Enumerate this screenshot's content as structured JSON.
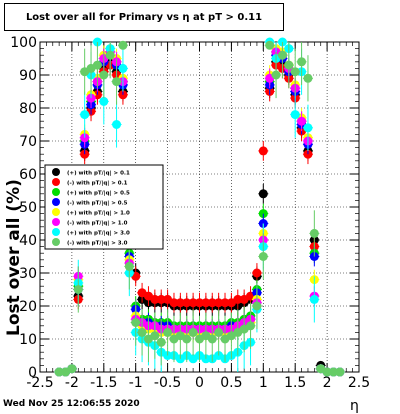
{
  "title": "Lost over all for Primary vs  η at pT > 0.11",
  "timestamp": "Wed Nov 25 12:06:55 2020",
  "chart_data": {
    "type": "scatter",
    "title": "Lost over all for Primary vs  η at pT > 0.11",
    "xlabel": "η",
    "ylabel": "Lost over all (%)",
    "xlim": [
      -2.5,
      2.5
    ],
    "ylim": [
      0,
      100
    ],
    "xticks": [
      "-2.5",
      "-2",
      "-1.5",
      "-1",
      "-0.5",
      "0",
      "0.5",
      "1",
      "1.5",
      "2",
      "2.5"
    ],
    "yticks": [
      "0",
      "10",
      "20",
      "30",
      "40",
      "50",
      "60",
      "70",
      "80",
      "90",
      "100"
    ],
    "grid": true,
    "legend_position": "left-middle",
    "series": [
      {
        "name": "(+) with pT/|q| > 0.1",
        "color": "#000000",
        "x": [
          -2.2,
          -2.1,
          -2.0,
          -1.9,
          -1.8,
          -1.7,
          -1.6,
          -1.5,
          -1.4,
          -1.3,
          -1.2,
          -1.1,
          -1.0,
          -0.9,
          -0.8,
          -0.7,
          -0.6,
          -0.5,
          -0.4,
          -0.3,
          -0.2,
          -0.1,
          0.0,
          0.1,
          0.2,
          0.3,
          0.4,
          0.5,
          0.6,
          0.7,
          0.8,
          0.9,
          1.0,
          1.1,
          1.2,
          1.3,
          1.4,
          1.5,
          1.6,
          1.7,
          1.8,
          1.9,
          2.0,
          2.1,
          2.2
        ],
        "y": [
          0,
          0,
          1,
          23,
          67,
          80,
          85,
          92,
          94,
          91,
          85,
          40,
          30,
          22,
          21,
          21,
          21,
          21,
          20,
          20,
          20,
          20,
          20,
          20,
          20,
          20,
          20,
          20,
          20,
          21,
          22,
          29,
          54,
          86,
          94,
          93,
          90,
          84,
          74,
          67,
          40,
          2,
          0,
          0,
          0
        ]
      },
      {
        "name": "(-) with pT/|q| > 0.1",
        "color": "#ff0000",
        "x": [
          -2.2,
          -2.1,
          -2.0,
          -1.9,
          -1.8,
          -1.7,
          -1.6,
          -1.5,
          -1.4,
          -1.3,
          -1.2,
          -1.1,
          -1.0,
          -0.9,
          -0.8,
          -0.7,
          -0.6,
          -0.5,
          -0.4,
          -0.3,
          -0.2,
          -0.1,
          0.0,
          0.1,
          0.2,
          0.3,
          0.4,
          0.5,
          0.6,
          0.7,
          0.8,
          0.9,
          1.0,
          1.1,
          1.2,
          1.3,
          1.4,
          1.5,
          1.6,
          1.7,
          1.8,
          1.9,
          2.0,
          2.1,
          2.2
        ],
        "y": [
          0,
          0,
          1,
          22,
          66,
          79,
          84,
          91,
          93,
          90,
          84,
          39,
          29,
          24,
          23,
          22,
          22,
          22,
          21,
          21,
          21,
          21,
          21,
          21,
          21,
          21,
          21,
          21,
          22,
          22,
          23,
          30,
          67,
          85,
          93,
          92,
          89,
          83,
          73,
          66,
          38,
          1,
          0,
          0,
          0
        ]
      },
      {
        "name": "(+) with pT/|q| > 0.5",
        "color": "#00dd00",
        "x": [
          -2.2,
          -2.1,
          -2.0,
          -1.9,
          -1.8,
          -1.7,
          -1.6,
          -1.5,
          -1.4,
          -1.3,
          -1.2,
          -1.1,
          -1.0,
          -0.9,
          -0.8,
          -0.7,
          -0.6,
          -0.5,
          -0.4,
          -0.3,
          -0.2,
          -0.1,
          0.0,
          0.1,
          0.2,
          0.3,
          0.4,
          0.5,
          0.6,
          0.7,
          0.8,
          0.9,
          1.0,
          1.1,
          1.2,
          1.3,
          1.4,
          1.5,
          1.6,
          1.7,
          1.8,
          1.9,
          2.0,
          2.1,
          2.2
        ],
        "y": [
          0,
          0,
          1,
          26,
          70,
          82,
          88,
          95,
          97,
          94,
          88,
          36,
          20,
          16,
          16,
          15,
          15,
          15,
          14,
          14,
          14,
          14,
          14,
          14,
          14,
          14,
          14,
          15,
          15,
          16,
          17,
          25,
          48,
          88,
          97,
          96,
          92,
          86,
          76,
          70,
          36,
          1,
          0,
          0,
          0
        ]
      },
      {
        "name": "(-) with pT/|q| > 0.5",
        "color": "#0000ff",
        "x": [
          -2.2,
          -2.1,
          -2.0,
          -1.9,
          -1.8,
          -1.7,
          -1.6,
          -1.5,
          -1.4,
          -1.3,
          -1.2,
          -1.1,
          -1.0,
          -0.9,
          -0.8,
          -0.7,
          -0.6,
          -0.5,
          -0.4,
          -0.3,
          -0.2,
          -0.1,
          0.0,
          0.1,
          0.2,
          0.3,
          0.4,
          0.5,
          0.6,
          0.7,
          0.8,
          0.9,
          1.0,
          1.1,
          1.2,
          1.3,
          1.4,
          1.5,
          1.6,
          1.7,
          1.8,
          1.9,
          2.0,
          2.1,
          2.2
        ],
        "y": [
          0,
          0,
          1,
          25,
          69,
          81,
          87,
          94,
          96,
          93,
          87,
          35,
          19,
          15,
          15,
          14,
          14,
          14,
          13,
          13,
          13,
          13,
          13,
          13,
          13,
          13,
          13,
          14,
          14,
          15,
          16,
          24,
          45,
          87,
          96,
          95,
          91,
          85,
          75,
          69,
          35,
          1,
          0,
          0,
          0
        ]
      },
      {
        "name": "(+) with pT/|q| > 1.0",
        "color": "#ffff00",
        "x": [
          -2.2,
          -2.1,
          -2.0,
          -1.9,
          -1.8,
          -1.7,
          -1.6,
          -1.5,
          -1.4,
          -1.3,
          -1.2,
          -1.1,
          -1.0,
          -0.9,
          -0.8,
          -0.7,
          -0.6,
          -0.5,
          -0.4,
          -0.3,
          -0.2,
          -0.1,
          0.0,
          0.1,
          0.2,
          0.3,
          0.4,
          0.5,
          0.6,
          0.7,
          0.8,
          0.9,
          1.0,
          1.1,
          1.2,
          1.3,
          1.4,
          1.5,
          1.6,
          1.7,
          1.8,
          1.9,
          2.0,
          2.1,
          2.2
        ],
        "y": [
          0,
          0,
          1,
          28,
          72,
          84,
          89,
          96,
          98,
          95,
          89,
          34,
          17,
          14,
          13,
          13,
          12,
          12,
          12,
          12,
          12,
          12,
          12,
          12,
          12,
          12,
          12,
          12,
          13,
          14,
          15,
          22,
          42,
          90,
          98,
          97,
          93,
          87,
          77,
          71,
          28,
          1,
          0,
          0,
          0
        ]
      },
      {
        "name": "(-) with pT/|q| > 1.0",
        "color": "#ff00ff",
        "x": [
          -2.2,
          -2.1,
          -2.0,
          -1.9,
          -1.8,
          -1.7,
          -1.6,
          -1.5,
          -1.4,
          -1.3,
          -1.2,
          -1.1,
          -1.0,
          -0.9,
          -0.8,
          -0.7,
          -0.6,
          -0.5,
          -0.4,
          -0.3,
          -0.2,
          -0.1,
          0.0,
          0.1,
          0.2,
          0.3,
          0.4,
          0.5,
          0.6,
          0.7,
          0.8,
          0.9,
          1.0,
          1.1,
          1.2,
          1.3,
          1.4,
          1.5,
          1.6,
          1.7,
          1.8,
          1.9,
          2.0,
          2.1,
          2.2
        ],
        "y": [
          0,
          0,
          1,
          29,
          71,
          83,
          88,
          95,
          97,
          94,
          88,
          33,
          16,
          15,
          14,
          14,
          13,
          13,
          13,
          13,
          13,
          13,
          13,
          13,
          13,
          13,
          13,
          13,
          14,
          15,
          16,
          21,
          40,
          89,
          97,
          96,
          92,
          86,
          76,
          70,
          23,
          1,
          0,
          0,
          0
        ]
      },
      {
        "name": "(+) with pT/|q| > 3.0",
        "color": "#00ffff",
        "x": [
          -2.2,
          -2.1,
          -2.0,
          -1.9,
          -1.8,
          -1.7,
          -1.6,
          -1.5,
          -1.4,
          -1.3,
          -1.2,
          -1.1,
          -1.0,
          -0.9,
          -0.8,
          -0.7,
          -0.6,
          -0.5,
          -0.4,
          -0.3,
          -0.2,
          -0.1,
          0.0,
          0.1,
          0.2,
          0.3,
          0.4,
          0.5,
          0.6,
          0.7,
          0.8,
          0.9,
          1.0,
          1.1,
          1.2,
          1.3,
          1.4,
          1.5,
          1.6,
          1.7,
          1.8,
          1.9,
          2.0,
          2.1,
          2.2
        ],
        "y": [
          0,
          0,
          1,
          27,
          78,
          90,
          100,
          82,
          98,
          75,
          92,
          30,
          12,
          10,
          9,
          8,
          6,
          5,
          5,
          4,
          5,
          4,
          5,
          4,
          4,
          5,
          4,
          5,
          6,
          8,
          9,
          19,
          38,
          100,
          95,
          100,
          98,
          78,
          91,
          74,
          22,
          1,
          0,
          0,
          0
        ]
      },
      {
        "name": "(-) with pT/|q| > 3.0",
        "color": "#66cc66",
        "x": [
          -2.2,
          -2.1,
          -2.0,
          -1.9,
          -1.8,
          -1.7,
          -1.6,
          -1.5,
          -1.4,
          -1.3,
          -1.2,
          -1.1,
          -1.0,
          -0.9,
          -0.8,
          -0.7,
          -0.6,
          -0.5,
          -0.4,
          -0.3,
          -0.2,
          -0.1,
          0.0,
          0.1,
          0.2,
          0.3,
          0.4,
          0.5,
          0.6,
          0.7,
          0.8,
          0.9,
          1.0,
          1.1,
          1.2,
          1.3,
          1.4,
          1.5,
          1.6,
          1.7,
          1.8,
          1.9,
          2.0,
          2.1,
          2.2
        ],
        "y": [
          0,
          0,
          1,
          25,
          91,
          92,
          93,
          90,
          96,
          88,
          99,
          32,
          15,
          12,
          10,
          11,
          9,
          12,
          10,
          11,
          10,
          12,
          10,
          11,
          10,
          12,
          10,
          11,
          12,
          13,
          14,
          20,
          35,
          99,
          90,
          96,
          93,
          91,
          94,
          89,
          42,
          1,
          0,
          0,
          0
        ]
      }
    ]
  }
}
